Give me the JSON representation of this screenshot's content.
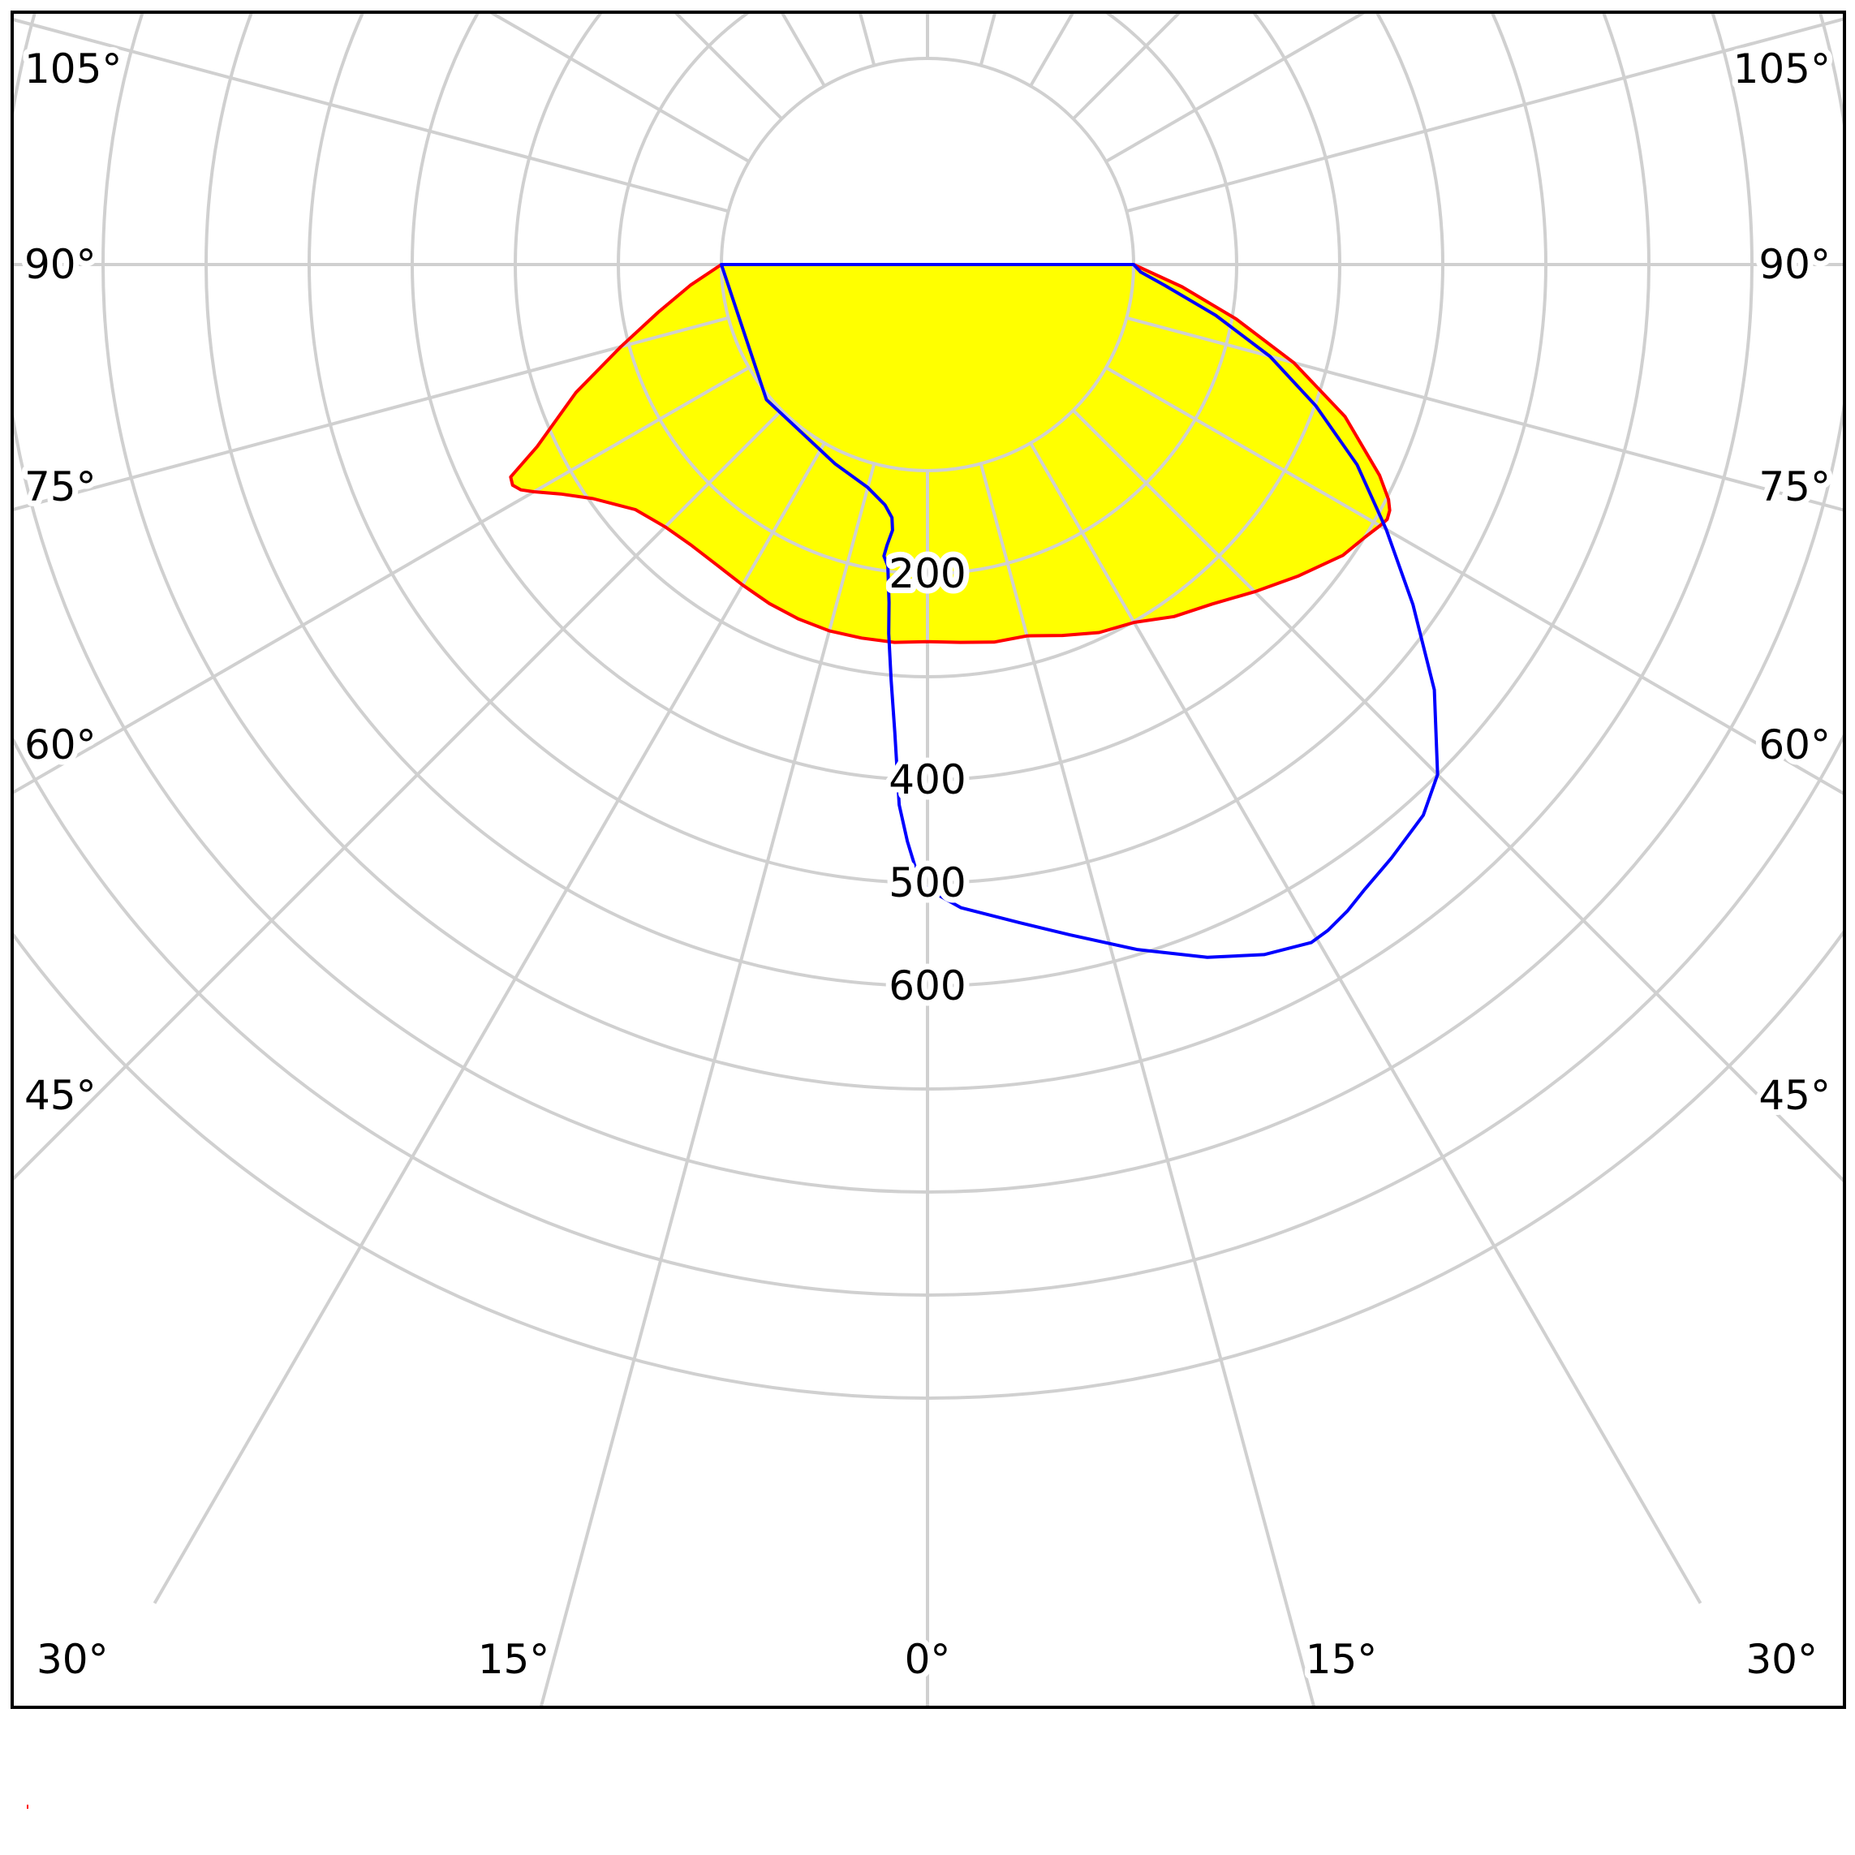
{
  "chart_data": {
    "type": "polar",
    "title": "",
    "angle_unit": "degrees",
    "radial_ticks": [
      {
        "value": 200,
        "label": "200"
      },
      {
        "value": 400,
        "label": "400"
      },
      {
        "value": 500,
        "label": "500"
      },
      {
        "value": 600,
        "label": "600"
      }
    ],
    "angle_ticks": [
      {
        "angle": 105,
        "label": "105°"
      },
      {
        "angle": 90,
        "label": "90°"
      },
      {
        "angle": 75,
        "label": "75°"
      },
      {
        "angle": 60,
        "label": "60°"
      },
      {
        "angle": 45,
        "label": "45°"
      },
      {
        "angle": 30,
        "label": "30°"
      },
      {
        "angle": 15,
        "label": "15°"
      },
      {
        "angle": 0,
        "label": "0°"
      }
    ],
    "grid": true,
    "series": [
      {
        "color": "#ff0000",
        "fill": "#ffff00",
        "points": [
          [
            -90,
            100
          ],
          [
            -85,
            131
          ],
          [
            -80,
            165
          ],
          [
            -75,
            208
          ],
          [
            -70,
            263
          ],
          [
            -65,
            318
          ],
          [
            -63,
            354
          ],
          [
            -62,
            356
          ],
          [
            -61,
            351
          ],
          [
            -60,
            341
          ],
          [
            -58,
            320
          ],
          [
            -55,
            296
          ],
          [
            -50,
            270
          ],
          [
            -45,
            260
          ],
          [
            -40,
            256
          ],
          [
            -35,
            256
          ],
          [
            -30,
            259
          ],
          [
            -25,
            263
          ],
          [
            -20,
            266
          ],
          [
            -15,
            268
          ],
          [
            -10,
            268
          ],
          [
            -5,
            268
          ],
          [
            0,
            266
          ],
          [
            5,
            268
          ],
          [
            10,
            272
          ],
          [
            15,
            273
          ],
          [
            20,
            283
          ],
          [
            25,
            294
          ],
          [
            30,
            301
          ],
          [
            35,
            317
          ],
          [
            40,
            330
          ],
          [
            45,
            349
          ],
          [
            50,
            370
          ],
          [
            55,
            392
          ],
          [
            58,
            400
          ],
          [
            60,
            407
          ],
          [
            61,
            410
          ],
          [
            62,
            408
          ],
          [
            63,
            402
          ],
          [
            65,
            384
          ],
          [
            70,
            331
          ],
          [
            75,
            268
          ],
          [
            80,
            204
          ],
          [
            85,
            148
          ],
          [
            90,
            100
          ]
        ]
      },
      {
        "color": "#0000ff",
        "fill": "none",
        "points": [
          [
            -90,
            100
          ],
          [
            -50,
            104
          ],
          [
            -25,
            113
          ],
          [
            -15,
            124
          ],
          [
            -10,
            137
          ],
          [
            -8,
            148
          ],
          [
            -7.5,
            160
          ],
          [
            -8.2,
            175
          ],
          [
            -8.5,
            186
          ],
          [
            -7.5,
            195
          ],
          [
            -6.5,
            230
          ],
          [
            -6,
            260
          ],
          [
            -5,
            305
          ],
          [
            -4,
            355
          ],
          [
            -3,
            425
          ],
          [
            -2,
            460
          ],
          [
            -1,
            490
          ],
          [
            0,
            506
          ],
          [
            3,
            525
          ],
          [
            8,
            545
          ],
          [
            12,
            565
          ],
          [
            17,
            595
          ],
          [
            22,
            625
          ],
          [
            26,
            645
          ],
          [
            29.5,
            656
          ],
          [
            31,
            654
          ],
          [
            33,
            648
          ],
          [
            35,
            640
          ],
          [
            38,
            631
          ],
          [
            42,
            619
          ],
          [
            45,
            600
          ],
          [
            50,
            542
          ],
          [
            55,
            475
          ],
          [
            60,
            414
          ],
          [
            65,
            360
          ],
          [
            70,
            301
          ],
          [
            75,
            244
          ],
          [
            80,
            184
          ],
          [
            85,
            131
          ],
          [
            88,
            107
          ],
          [
            90,
            100
          ]
        ]
      }
    ]
  }
}
